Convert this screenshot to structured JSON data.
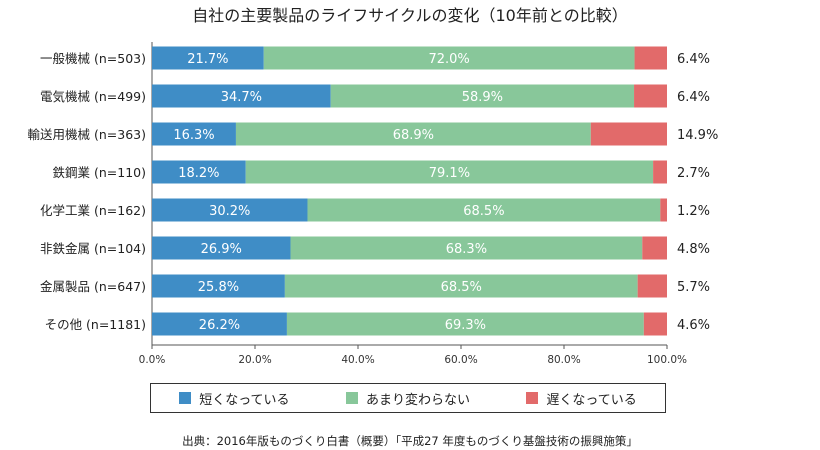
{
  "colors": {
    "short": "#3f8dc6",
    "same": "#88c79a",
    "long": "#e26a6a"
  },
  "chart_data": {
    "type": "bar",
    "orientation": "horizontal",
    "stacked": true,
    "title": "自社の主要製品のライフサイクルの変化（10年前との比較）",
    "categories": [
      "一般機械 (n=503)",
      "電気機械 (n=499)",
      "輸送用機械 (n=363)",
      "鉄鋼業 (n=110)",
      "化学工業 (n=162)",
      "非鉄金属 (n=104)",
      "金属製品 (n=647)",
      "その他 (n=1181)"
    ],
    "series": [
      {
        "name": "短くなっている",
        "values": [
          21.7,
          34.7,
          16.3,
          18.2,
          30.2,
          26.9,
          25.8,
          26.2
        ],
        "labels": [
          "21.7%",
          "34.7%",
          "16.3%",
          "18.2%",
          "30.2%",
          "26.9%",
          "25.8%",
          "26.2%"
        ]
      },
      {
        "name": "あまり変わらない",
        "values": [
          72.0,
          58.9,
          68.9,
          79.1,
          68.5,
          68.3,
          68.5,
          69.3
        ],
        "labels": [
          "72.0%",
          "58.9%",
          "68.9%",
          "79.1%",
          "68.5%",
          "68.3%",
          "68.5%",
          "69.3%"
        ]
      },
      {
        "name": "遅くなっている",
        "values": [
          6.4,
          6.4,
          14.9,
          2.7,
          1.2,
          4.8,
          5.7,
          4.6
        ],
        "labels": [
          "6.4%",
          "6.4%",
          "14.9%",
          "2.7%",
          "1.2%",
          "4.8%",
          "5.7%",
          "4.6%"
        ]
      }
    ],
    "xlim": [
      0,
      100
    ],
    "xticks": [
      "0.0%",
      "20.0%",
      "40.0%",
      "60.0%",
      "80.0%",
      "100.0%"
    ],
    "legend": "bottom",
    "source": "出典：2016年版ものづくり白書（概要）「平成27 年度ものづくり基盤技術の振興施策」"
  }
}
